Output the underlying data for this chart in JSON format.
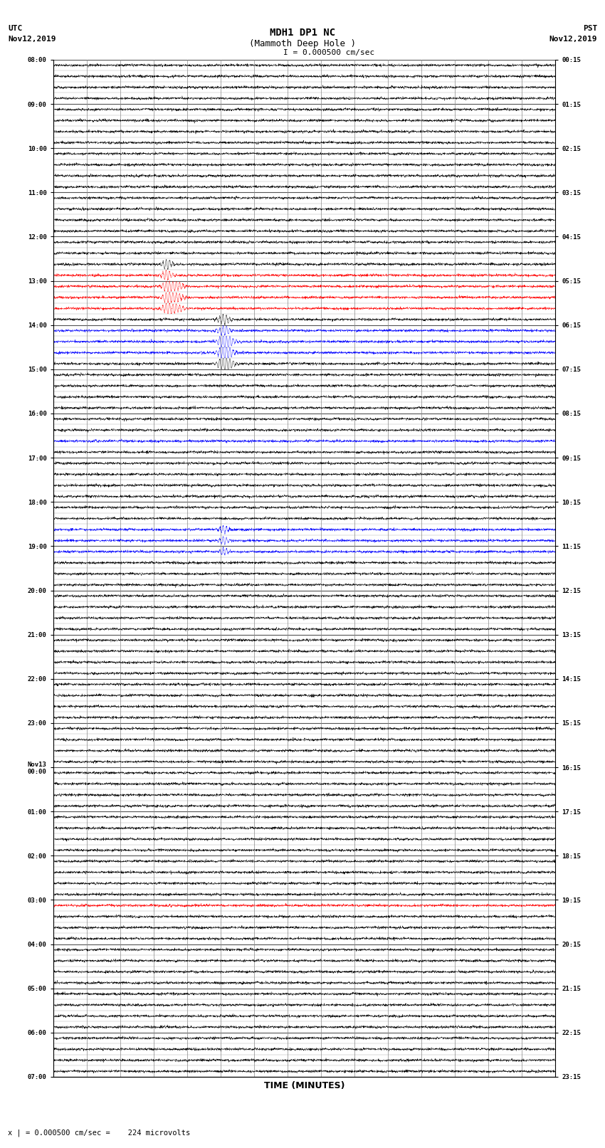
{
  "title_line1": "MDH1 DP1 NC",
  "title_line2": "(Mammoth Deep Hole )",
  "title_line3": "I = 0.000500 cm/sec",
  "left_label_line1": "UTC",
  "left_label_line2": "Nov12,2019",
  "right_label_line1": "PST",
  "right_label_line2": "Nov12,2019",
  "bottom_label": "x | = 0.000500 cm/sec =    224 microvolts",
  "xlabel": "TIME (MINUTES)",
  "num_rows": 92,
  "minutes_per_row": 15,
  "x_min": 0,
  "x_max": 15,
  "background_color": "#ffffff",
  "noise_amplitude": 0.055,
  "seed": 42,
  "events": [
    {
      "row": 20,
      "x": 3.4,
      "amp": 0.45,
      "hw": 0.12,
      "color": "red",
      "span": 2
    },
    {
      "row": 21,
      "x": 3.7,
      "amp": 0.38,
      "hw": 0.15,
      "color": "red",
      "span": 1
    },
    {
      "row": 25,
      "x": 5.1,
      "amp": 0.44,
      "hw": 0.14,
      "color": "blue",
      "span": 2
    },
    {
      "row": 26,
      "x": 5.2,
      "amp": 0.32,
      "hw": 0.18,
      "color": "blue",
      "span": 1
    },
    {
      "row": 27,
      "x": 7.1,
      "amp": 0.07,
      "hw": 0.04,
      "color": "black",
      "span": 0
    },
    {
      "row": 22,
      "x": 10.1,
      "amp": 0.04,
      "hw": 0.04,
      "color": "red",
      "span": 0
    },
    {
      "row": 34,
      "x": 1.3,
      "amp": 0.08,
      "hw": 0.04,
      "color": "blue",
      "span": 0
    },
    {
      "row": 43,
      "x": 5.1,
      "amp": 0.36,
      "hw": 0.1,
      "color": "blue",
      "span": 1
    },
    {
      "row": 76,
      "x": 3.5,
      "amp": 0.1,
      "hw": 0.06,
      "color": "red",
      "span": 0
    }
  ]
}
